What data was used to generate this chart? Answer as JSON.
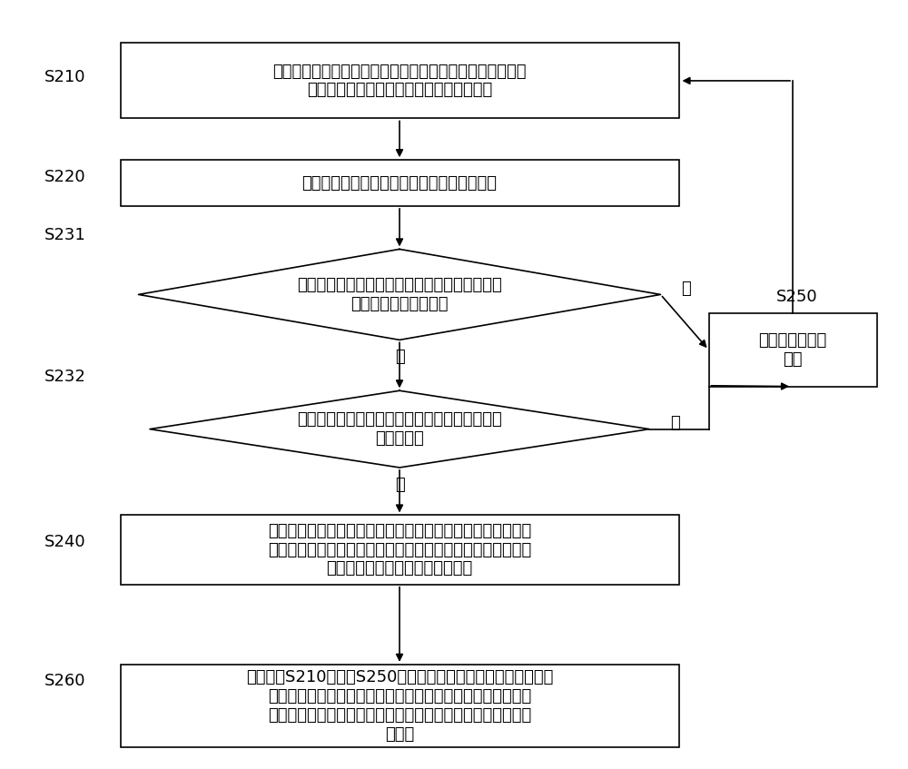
{
  "bg_color": "#ffffff",
  "font_size": 13,
  "label_font_size": 13,
  "s210_text": "对于组成岩石的每一种矿物，根据预先测定的该矿物的摩尔\n质量以及预先确定的分子式模型构建关系式",
  "s220_text": "对所述关系式进行求解得到主元素的分配系数",
  "s231_text": "判断计算的主元素的分配系数与元素相对含量的\n实际测量结果是否一致",
  "s232_text": "进一步判断主元素的分配系数的计算误差是否小\n于误差阈值",
  "s240_text": "按照与所述主元素的分配系数对应的分子式计算组成该矿物的\n各元素在该矿物中的含量系数，以确定组成岩石的每一种矿物\n中的各元素在该矿物中的含量系数",
  "s250_text": "重新确定分子式\n模型",
  "s260_text": "按照步骤S210至步骤S250确定组成岩石的每一种矿物中的各元\n素在该矿物中的含量系数，并根据组成岩石的每一种矿物中的\n各元素在该矿物中的含量系数确定岩石中元素与矿物关系的系\n数矩阵",
  "yes_label": "是",
  "no_label": "否"
}
